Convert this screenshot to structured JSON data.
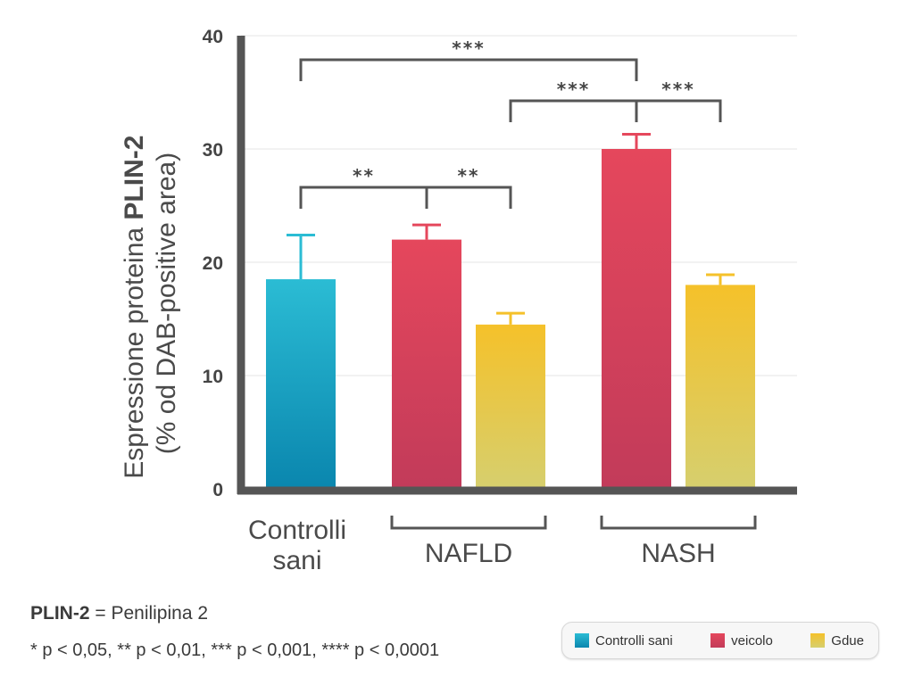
{
  "chart_data": {
    "type": "bar",
    "ylabel_line1_prefix": "Espressione proteina ",
    "ylabel_line1_bold": "PLIN-2",
    "ylabel_line2": "(% od DAB-positive area)",
    "ylim": [
      0,
      40
    ],
    "yticks": [
      "0",
      "10",
      "20",
      "30",
      "40"
    ],
    "grid": true,
    "groups": [
      {
        "label_lines": [
          "Controlli",
          "sani"
        ],
        "bracket": false
      },
      {
        "label_lines": [
          "NAFLD"
        ],
        "bracket": true
      },
      {
        "label_lines": [
          "NASH"
        ],
        "bracket": true
      }
    ],
    "bars": [
      {
        "group": 0,
        "series": "Controlli sani",
        "value": 18.5,
        "error": 3.9
      },
      {
        "group": 1,
        "series": "veicolo",
        "value": 22.0,
        "error": 1.3
      },
      {
        "group": 1,
        "series": "Gdue",
        "value": 14.5,
        "error": 1.0
      },
      {
        "group": 2,
        "series": "veicolo",
        "value": 30.0,
        "error": 1.3
      },
      {
        "group": 2,
        "series": "Gdue",
        "value": 18.0,
        "error": 0.9
      }
    ],
    "significance": [
      {
        "from_bar": 0,
        "to_bar": 3,
        "label": "***"
      },
      {
        "from_bar": 2,
        "to_bar": 3,
        "label": "***"
      },
      {
        "from_bar": 3,
        "to_bar": 4,
        "label": "***"
      },
      {
        "from_bar": 0,
        "to_bar": 1,
        "label": "**"
      },
      {
        "from_bar": 1,
        "to_bar": 2,
        "label": "**"
      }
    ],
    "legend": {
      "placement": "bottom-right",
      "entries": [
        {
          "name": "Controlli sani",
          "color_top": "#2bbcd4",
          "color_bottom": "#0a86ae"
        },
        {
          "name": "veicolo",
          "color_top": "#e5475c",
          "color_bottom": "#c23b5a"
        },
        {
          "name": "Gdue",
          "color_top": "#f5c12a",
          "color_bottom": "#d6cf6e"
        }
      ]
    }
  },
  "footnotes": {
    "definition_bold": "PLIN-2",
    "definition_rest": " = Penilipina 2",
    "pvalues": "* p < 0,05, ** p < 0,01, *** p < 0,001, **** p < 0,0001"
  }
}
